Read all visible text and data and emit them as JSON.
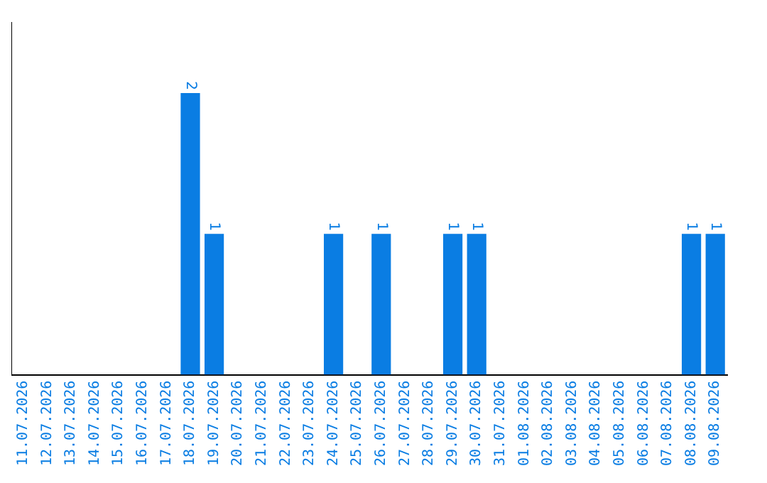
{
  "chart_data": {
    "type": "bar",
    "categories": [
      "11.07.2026",
      "12.07.2026",
      "13.07.2026",
      "14.07.2026",
      "15.07.2026",
      "16.07.2026",
      "17.07.2026",
      "18.07.2026",
      "19.07.2026",
      "20.07.2026",
      "21.07.2026",
      "22.07.2026",
      "23.07.2026",
      "24.07.2026",
      "25.07.2026",
      "26.07.2026",
      "27.07.2026",
      "28.07.2026",
      "29.07.2026",
      "30.07.2026",
      "31.07.2026",
      "01.08.2026",
      "02.08.2026",
      "03.08.2026",
      "04.08.2026",
      "05.08.2026",
      "06.08.2026",
      "07.08.2026",
      "08.08.2026",
      "09.08.2026"
    ],
    "values": [
      0,
      0,
      0,
      0,
      0,
      0,
      0,
      2,
      1,
      0,
      0,
      0,
      0,
      1,
      0,
      1,
      0,
      0,
      1,
      1,
      0,
      0,
      0,
      0,
      0,
      0,
      0,
      0,
      1,
      1
    ],
    "value_labels": [
      null,
      null,
      null,
      null,
      null,
      null,
      null,
      "2",
      "1",
      null,
      null,
      null,
      null,
      "1",
      null,
      "1",
      null,
      null,
      "1",
      "1",
      null,
      null,
      null,
      null,
      null,
      null,
      null,
      null,
      "1",
      "1"
    ],
    "color": "#0a7de3",
    "grid": false,
    "legend": false,
    "tick_labels": "x"
  }
}
